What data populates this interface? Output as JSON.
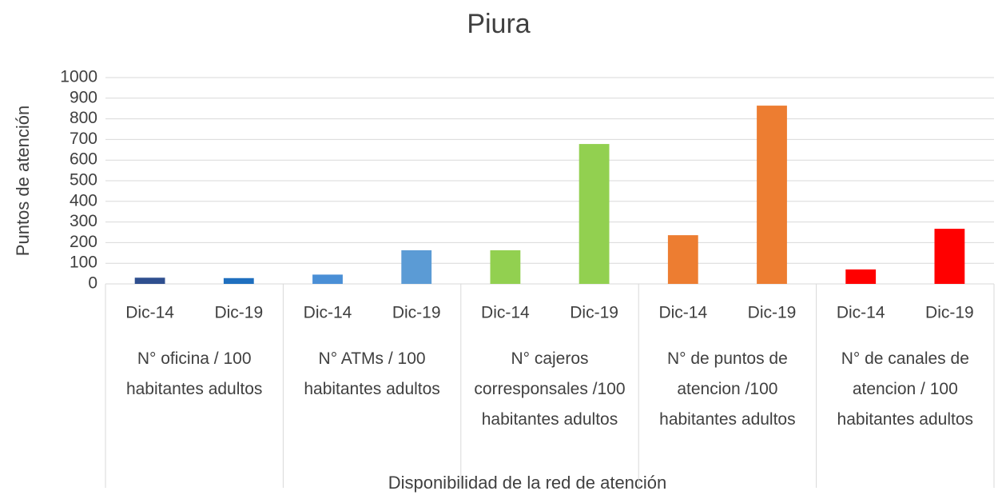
{
  "chart_data": {
    "type": "bar",
    "title": "Piura",
    "y_axis_label": "Puntos de atención",
    "x_axis_label": "Disponibilidad de la red de atención",
    "categories": [
      "Dic-14",
      "Dic-19",
      "Dic-14",
      "Dic-19",
      "Dic-14",
      "Dic-19",
      "Dic-14",
      "Dic-19",
      "Dic-14",
      "Dic-19"
    ],
    "groups": [
      "N° oficina / 100 habitantes adultos",
      "N°  ATMs / 100 habitantes adultos",
      "N° cajeros corresponsales /100 habitantes adultos",
      "N° de puntos de atencion /100 habitantes adultos",
      "N° de canales de atencion / 100 habitantes adultos"
    ],
    "values": [
      30,
      28,
      45,
      163,
      163,
      678,
      236,
      864,
      70,
      267
    ],
    "colors": [
      "#2f4f8f",
      "#1f6fbf",
      "#4a8fd6",
      "#5b9bd5",
      "#92d050",
      "#92d050",
      "#ed7d31",
      "#ed7d31",
      "#ff0000",
      "#ff0000"
    ],
    "ylim": [
      0,
      1000
    ],
    "yticks": [
      0,
      100,
      200,
      300,
      400,
      500,
      600,
      700,
      800,
      900,
      1000
    ],
    "grid": true
  }
}
